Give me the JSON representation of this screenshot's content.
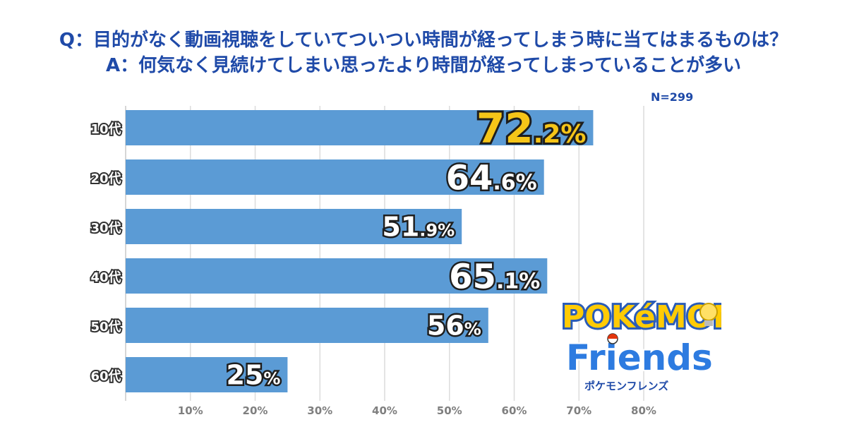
{
  "title_q": "Q：目的がなく動画視聴をしていてついつい時間が経ってしまう時に当てはまるものは？",
  "title_a": "A：何気なく見続けてしまい思ったより時間が経ってしまっていることが多い",
  "n_label": "N=299",
  "logo": {
    "word1": "POKéMON",
    "word2": "Friends",
    "kana": "ポケモンフレンズ"
  },
  "colors": {
    "bar": "#5b9bd5",
    "title": "#1f4aa8",
    "highlight": "#f5c518",
    "grid": "#dcdcdc",
    "tick": "#7f7f7f"
  },
  "chart_data": {
    "type": "bar",
    "orientation": "horizontal",
    "categories": [
      "10代",
      "20代",
      "30代",
      "40代",
      "50代",
      "60代"
    ],
    "values": [
      72.2,
      64.6,
      51.9,
      65.1,
      56,
      25
    ],
    "value_labels": [
      {
        "main": "72",
        "dec": ".2",
        "pct": "%"
      },
      {
        "main": "64",
        "dec": ".6",
        "pct": "%"
      },
      {
        "main": "51",
        "dec": ".9",
        "pct": "%"
      },
      {
        "main": "65",
        "dec": ".1",
        "pct": "%"
      },
      {
        "main": "56",
        "dec": "",
        "pct": "%"
      },
      {
        "main": "25",
        "dec": "",
        "pct": "%"
      }
    ],
    "highlight_index": 0,
    "xticks": [
      "10%",
      "20%",
      "30%",
      "40%",
      "50%",
      "60%",
      "70%",
      "80%"
    ],
    "xlim": [
      0,
      80
    ],
    "grid": true
  }
}
